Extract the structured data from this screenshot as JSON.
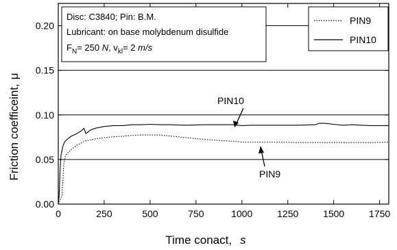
{
  "chart_data": {
    "type": "line",
    "xlabel": "Time conact,",
    "xunit": "s",
    "ylabel": "Friction coefficeint,",
    "yunit": "μ",
    "xlim": [
      0,
      1800
    ],
    "ylim": [
      0,
      0.225
    ],
    "xticks": [
      0,
      250,
      500,
      750,
      1000,
      1250,
      1500,
      1750
    ],
    "yticks": [
      0.0,
      0.05,
      0.1,
      0.15,
      0.2
    ],
    "ytick_labels": [
      "0.00",
      "0.05",
      "0.10",
      "0.15",
      "0.20"
    ],
    "grid": "horizontal",
    "info_box": {
      "line1": "Disc: C3840; Pin: B.M.",
      "line2": "Lubricant: on base molybdenum disulfide",
      "fn_symbol": "F",
      "fn_sub": "N",
      "fn_value": "= 250",
      "fn_unit": "N",
      "sep": ",",
      "v_symbol": "v",
      "v_sub": "kl",
      "v_value": "= 2",
      "v_unit": "m/s"
    },
    "legend": {
      "position": "top-right",
      "entries": [
        {
          "name": "PIN9",
          "style": "dotted"
        },
        {
          "name": "PIN10",
          "style": "solid"
        }
      ]
    },
    "annotations": [
      {
        "text": "PIN10",
        "x": 970,
        "y": 0.0895
      },
      {
        "text": "PIN9",
        "x": 1085,
        "y": 0.069
      }
    ],
    "series": [
      {
        "name": "PIN10",
        "style": "solid",
        "x": [
          0,
          5,
          10,
          15,
          20,
          25,
          35,
          50,
          70,
          100,
          125,
          140,
          150,
          175,
          200,
          250,
          300,
          350,
          400,
          450,
          500,
          550,
          600,
          700,
          800,
          900,
          950,
          1000,
          1050,
          1100,
          1200,
          1300,
          1400,
          1420,
          1450,
          1500,
          1550,
          1600,
          1650,
          1700,
          1750,
          1800
        ],
        "y": [
          0.0,
          0.01,
          0.04,
          0.055,
          0.06,
          0.065,
          0.07,
          0.073,
          0.076,
          0.079,
          0.082,
          0.085,
          0.079,
          0.083,
          0.085,
          0.087,
          0.088,
          0.088,
          0.089,
          0.089,
          0.0895,
          0.089,
          0.089,
          0.0885,
          0.089,
          0.089,
          0.089,
          0.088,
          0.0885,
          0.0885,
          0.0885,
          0.0885,
          0.089,
          0.0905,
          0.0905,
          0.0895,
          0.0885,
          0.089,
          0.0885,
          0.088,
          0.088,
          0.088
        ]
      },
      {
        "name": "PIN9",
        "style": "dotted",
        "x": [
          0,
          10,
          20,
          30,
          40,
          55,
          75,
          100,
          150,
          200,
          250,
          300,
          350,
          400,
          450,
          500,
          550,
          600,
          700,
          800,
          900,
          950,
          1000,
          1050,
          1100,
          1200,
          1300,
          1400,
          1500,
          1600,
          1700,
          1800
        ],
        "y": [
          0.0,
          0.005,
          0.01,
          0.045,
          0.055,
          0.058,
          0.062,
          0.066,
          0.071,
          0.073,
          0.0745,
          0.0755,
          0.076,
          0.077,
          0.0775,
          0.0775,
          0.0775,
          0.0765,
          0.0745,
          0.0725,
          0.071,
          0.0705,
          0.0695,
          0.0695,
          0.0695,
          0.0695,
          0.069,
          0.069,
          0.069,
          0.069,
          0.069,
          0.0695
        ]
      }
    ]
  }
}
